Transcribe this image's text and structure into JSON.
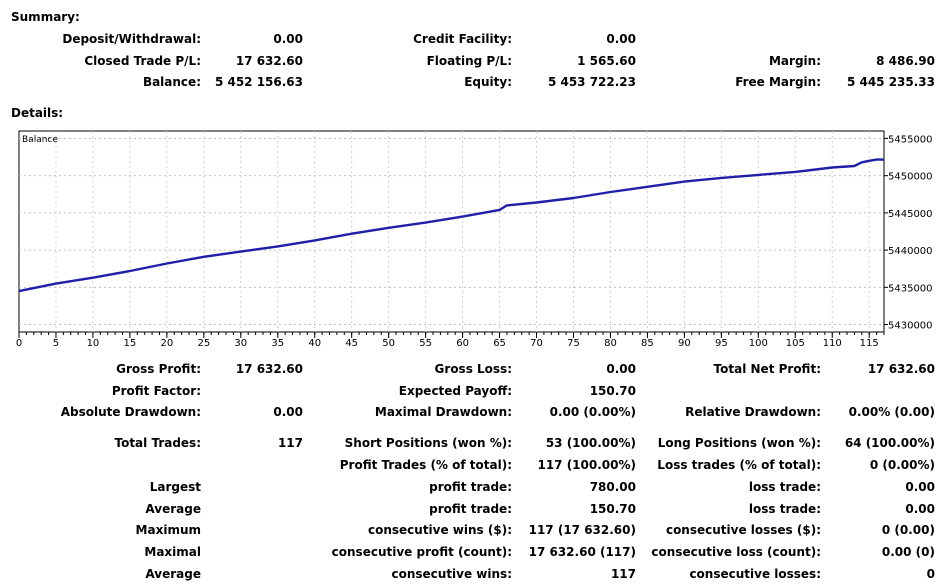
{
  "summary": {
    "title": "Summary:",
    "rows": [
      [
        {
          "label": "Deposit/Withdrawal:",
          "value": "0.00"
        },
        {
          "label": "Credit Facility:",
          "value": "0.00"
        },
        {
          "label": "",
          "value": ""
        }
      ],
      [
        {
          "label": "Closed Trade P/L:",
          "value": "17 632.60"
        },
        {
          "label": "Floating P/L:",
          "value": "1 565.60"
        },
        {
          "label": "Margin:",
          "value": "8 486.90"
        }
      ],
      [
        {
          "label": "Balance:",
          "value": "5 452 156.63"
        },
        {
          "label": "Equity:",
          "value": "5 453 722.23"
        },
        {
          "label": "Free Margin:",
          "value": "5 445 235.33"
        }
      ]
    ]
  },
  "details": {
    "title": "Details:",
    "rows": [
      [
        {
          "label": "Gross Profit:",
          "value": "17 632.60"
        },
        {
          "label": "Gross Loss:",
          "value": "0.00"
        },
        {
          "label": "Total Net Profit:",
          "value": "17 632.60"
        }
      ],
      [
        {
          "label": "Profit Factor:",
          "value": ""
        },
        {
          "label": "Expected Payoff:",
          "value": "150.70"
        },
        {
          "label": "",
          "value": ""
        }
      ],
      [
        {
          "label": "Absolute Drawdown:",
          "value": "0.00"
        },
        {
          "label": "Maximal Drawdown:",
          "value": "0.00 (0.00%)"
        },
        {
          "label": "Relative Drawdown:",
          "value": "0.00% (0.00)"
        }
      ],
      [
        {
          "label": "Total Trades:",
          "value": "117"
        },
        {
          "label": "Short Positions (won %):",
          "value": "53 (100.00%)"
        },
        {
          "label": "Long Positions (won %):",
          "value": "64 (100.00%)"
        }
      ],
      [
        {
          "label": "",
          "value": ""
        },
        {
          "label": "Profit Trades (% of total):",
          "value": "117 (100.00%)"
        },
        {
          "label": "Loss trades (% of total):",
          "value": "0 (0.00%)"
        }
      ],
      [
        {
          "label": "Largest",
          "value": ""
        },
        {
          "label": "profit trade:",
          "value": "780.00"
        },
        {
          "label": "loss trade:",
          "value": "0.00"
        }
      ],
      [
        {
          "label": "Average",
          "value": ""
        },
        {
          "label": "profit trade:",
          "value": "150.70"
        },
        {
          "label": "loss trade:",
          "value": "0.00"
        }
      ],
      [
        {
          "label": "Maximum",
          "value": ""
        },
        {
          "label": "consecutive wins ($):",
          "value": "117 (17 632.60)"
        },
        {
          "label": "consecutive losses ($):",
          "value": "0 (0.00)"
        }
      ],
      [
        {
          "label": "Maximal",
          "value": ""
        },
        {
          "label": "consecutive profit (count):",
          "value": "17 632.60 (117)"
        },
        {
          "label": "consecutive loss (count):",
          "value": "0.00 (0)"
        }
      ],
      [
        {
          "label": "Average",
          "value": ""
        },
        {
          "label": "consecutive wins:",
          "value": "117"
        },
        {
          "label": "consecutive losses:",
          "value": "0"
        }
      ]
    ]
  },
  "chart_data": {
    "type": "line",
    "label": "Balance",
    "line_color": "#1f1fa8",
    "grid": true,
    "xlim": [
      0,
      117
    ],
    "ylim": [
      5429000,
      5456000
    ],
    "x_ticks": [
      0,
      5,
      10,
      15,
      20,
      25,
      30,
      35,
      40,
      45,
      50,
      55,
      60,
      65,
      70,
      75,
      80,
      85,
      90,
      95,
      100,
      105,
      110,
      115
    ],
    "y_ticks": [
      5430000,
      5435000,
      5440000,
      5445000,
      5450000,
      5455000
    ],
    "y_tick_labels": [
      "5430000",
      "5435000",
      "5440000",
      "5445000",
      "5450000",
      "5455000"
    ],
    "series": [
      {
        "x": [
          0,
          5,
          10,
          15,
          20,
          25,
          30,
          35,
          40,
          45,
          50,
          55,
          60,
          65,
          66,
          70,
          75,
          80,
          85,
          90,
          95,
          100,
          105,
          110,
          113,
          114,
          115,
          116,
          117
        ],
        "y": [
          5434500,
          5435500,
          5436300,
          5437200,
          5438200,
          5439100,
          5439800,
          5440500,
          5441300,
          5442200,
          5443000,
          5443700,
          5444500,
          5445400,
          5446000,
          5446400,
          5447000,
          5447800,
          5448500,
          5449200,
          5449700,
          5450100,
          5450500,
          5451100,
          5451300,
          5451800,
          5452000,
          5452157,
          5452157
        ]
      }
    ]
  }
}
